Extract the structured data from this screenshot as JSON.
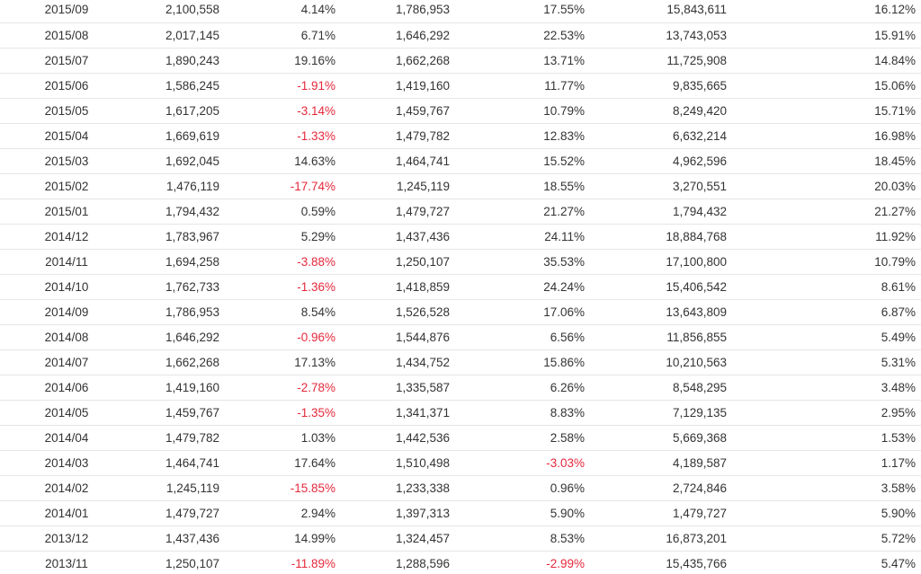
{
  "accent": {
    "negative_color": "#e5283b",
    "text_color": "#333333",
    "row_border_color": "#e6e6e6"
  },
  "rows": [
    {
      "month": "2015/09",
      "c1": "2,100,558",
      "c2": "4.14%",
      "c3": "1,786,953",
      "c4": "17.55%",
      "c5": "15,843,611",
      "c6": "16.12%"
    },
    {
      "month": "2015/08",
      "c1": "2,017,145",
      "c2": "6.71%",
      "c3": "1,646,292",
      "c4": "22.53%",
      "c5": "13,743,053",
      "c6": "15.91%"
    },
    {
      "month": "2015/07",
      "c1": "1,890,243",
      "c2": "19.16%",
      "c3": "1,662,268",
      "c4": "13.71%",
      "c5": "11,725,908",
      "c6": "14.84%"
    },
    {
      "month": "2015/06",
      "c1": "1,586,245",
      "c2": "-1.91%",
      "c3": "1,419,160",
      "c4": "11.77%",
      "c5": "9,835,665",
      "c6": "15.06%"
    },
    {
      "month": "2015/05",
      "c1": "1,617,205",
      "c2": "-3.14%",
      "c3": "1,459,767",
      "c4": "10.79%",
      "c5": "8,249,420",
      "c6": "15.71%"
    },
    {
      "month": "2015/04",
      "c1": "1,669,619",
      "c2": "-1.33%",
      "c3": "1,479,782",
      "c4": "12.83%",
      "c5": "6,632,214",
      "c6": "16.98%"
    },
    {
      "month": "2015/03",
      "c1": "1,692,045",
      "c2": "14.63%",
      "c3": "1,464,741",
      "c4": "15.52%",
      "c5": "4,962,596",
      "c6": "18.45%"
    },
    {
      "month": "2015/02",
      "c1": "1,476,119",
      "c2": "-17.74%",
      "c3": "1,245,119",
      "c4": "18.55%",
      "c5": "3,270,551",
      "c6": "20.03%"
    },
    {
      "month": "2015/01",
      "c1": "1,794,432",
      "c2": "0.59%",
      "c3": "1,479,727",
      "c4": "21.27%",
      "c5": "1,794,432",
      "c6": "21.27%"
    },
    {
      "month": "2014/12",
      "c1": "1,783,967",
      "c2": "5.29%",
      "c3": "1,437,436",
      "c4": "24.11%",
      "c5": "18,884,768",
      "c6": "11.92%"
    },
    {
      "month": "2014/11",
      "c1": "1,694,258",
      "c2": "-3.88%",
      "c3": "1,250,107",
      "c4": "35.53%",
      "c5": "17,100,800",
      "c6": "10.79%"
    },
    {
      "month": "2014/10",
      "c1": "1,762,733",
      "c2": "-1.36%",
      "c3": "1,418,859",
      "c4": "24.24%",
      "c5": "15,406,542",
      "c6": "8.61%"
    },
    {
      "month": "2014/09",
      "c1": "1,786,953",
      "c2": "8.54%",
      "c3": "1,526,528",
      "c4": "17.06%",
      "c5": "13,643,809",
      "c6": "6.87%"
    },
    {
      "month": "2014/08",
      "c1": "1,646,292",
      "c2": "-0.96%",
      "c3": "1,544,876",
      "c4": "6.56%",
      "c5": "11,856,855",
      "c6": "5.49%"
    },
    {
      "month": "2014/07",
      "c1": "1,662,268",
      "c2": "17.13%",
      "c3": "1,434,752",
      "c4": "15.86%",
      "c5": "10,210,563",
      "c6": "5.31%"
    },
    {
      "month": "2014/06",
      "c1": "1,419,160",
      "c2": "-2.78%",
      "c3": "1,335,587",
      "c4": "6.26%",
      "c5": "8,548,295",
      "c6": "3.48%"
    },
    {
      "month": "2014/05",
      "c1": "1,459,767",
      "c2": "-1.35%",
      "c3": "1,341,371",
      "c4": "8.83%",
      "c5": "7,129,135",
      "c6": "2.95%"
    },
    {
      "month": "2014/04",
      "c1": "1,479,782",
      "c2": "1.03%",
      "c3": "1,442,536",
      "c4": "2.58%",
      "c5": "5,669,368",
      "c6": "1.53%"
    },
    {
      "month": "2014/03",
      "c1": "1,464,741",
      "c2": "17.64%",
      "c3": "1,510,498",
      "c4": "-3.03%",
      "c5": "4,189,587",
      "c6": "1.17%"
    },
    {
      "month": "2014/02",
      "c1": "1,245,119",
      "c2": "-15.85%",
      "c3": "1,233,338",
      "c4": "0.96%",
      "c5": "2,724,846",
      "c6": "3.58%"
    },
    {
      "month": "2014/01",
      "c1": "1,479,727",
      "c2": "2.94%",
      "c3": "1,397,313",
      "c4": "5.90%",
      "c5": "1,479,727",
      "c6": "5.90%"
    },
    {
      "month": "2013/12",
      "c1": "1,437,436",
      "c2": "14.99%",
      "c3": "1,324,457",
      "c4": "8.53%",
      "c5": "16,873,201",
      "c6": "5.72%"
    },
    {
      "month": "2013/11",
      "c1": "1,250,107",
      "c2": "-11.89%",
      "c3": "1,288,596",
      "c4": "-2.99%",
      "c5": "15,435,766",
      "c6": "5.47%"
    }
  ]
}
